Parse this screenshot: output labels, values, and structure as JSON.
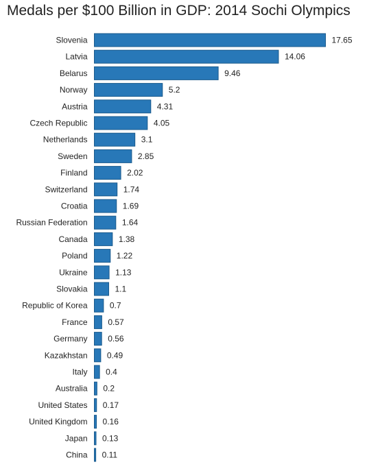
{
  "chart_data": {
    "type": "bar",
    "orientation": "horizontal",
    "title": "Medals per $100 Billion in GDP: 2014 Sochi Olympics",
    "xlabel": "",
    "ylabel": "",
    "grid": false,
    "bar_color": "#2878b8",
    "categories": [
      "Slovenia",
      "Latvia",
      "Belarus",
      "Norway",
      "Austria",
      "Czech Republic",
      "Netherlands",
      "Sweden",
      "Finland",
      "Switzerland",
      "Croatia",
      "Russian Federation",
      "Canada",
      "Poland",
      "Ukraine",
      "Slovakia",
      "Republic of Korea",
      "France",
      "Germany",
      "Kazakhstan",
      "Italy",
      "Australia",
      "United States",
      "United Kingdom",
      "Japan",
      "China"
    ],
    "values": [
      17.65,
      14.06,
      9.46,
      5.2,
      4.31,
      4.05,
      3.1,
      2.85,
      2.02,
      1.74,
      1.69,
      1.64,
      1.38,
      1.22,
      1.13,
      1.1,
      0.7,
      0.57,
      0.56,
      0.49,
      0.4,
      0.2,
      0.17,
      0.16,
      0.13,
      0.11
    ],
    "data_labels": [
      "17.65",
      "14.06",
      "9.46",
      "5.2",
      "4.31",
      "4.05",
      "3.1",
      "2.85",
      "2.02",
      "1.74",
      "1.69",
      "1.64",
      "1.38",
      "1.22",
      "1.13",
      "1.1",
      "0.7",
      "0.57",
      "0.56",
      "0.49",
      "0.4",
      "0.2",
      "0.17",
      "0.16",
      "0.13",
      "0.11"
    ]
  }
}
